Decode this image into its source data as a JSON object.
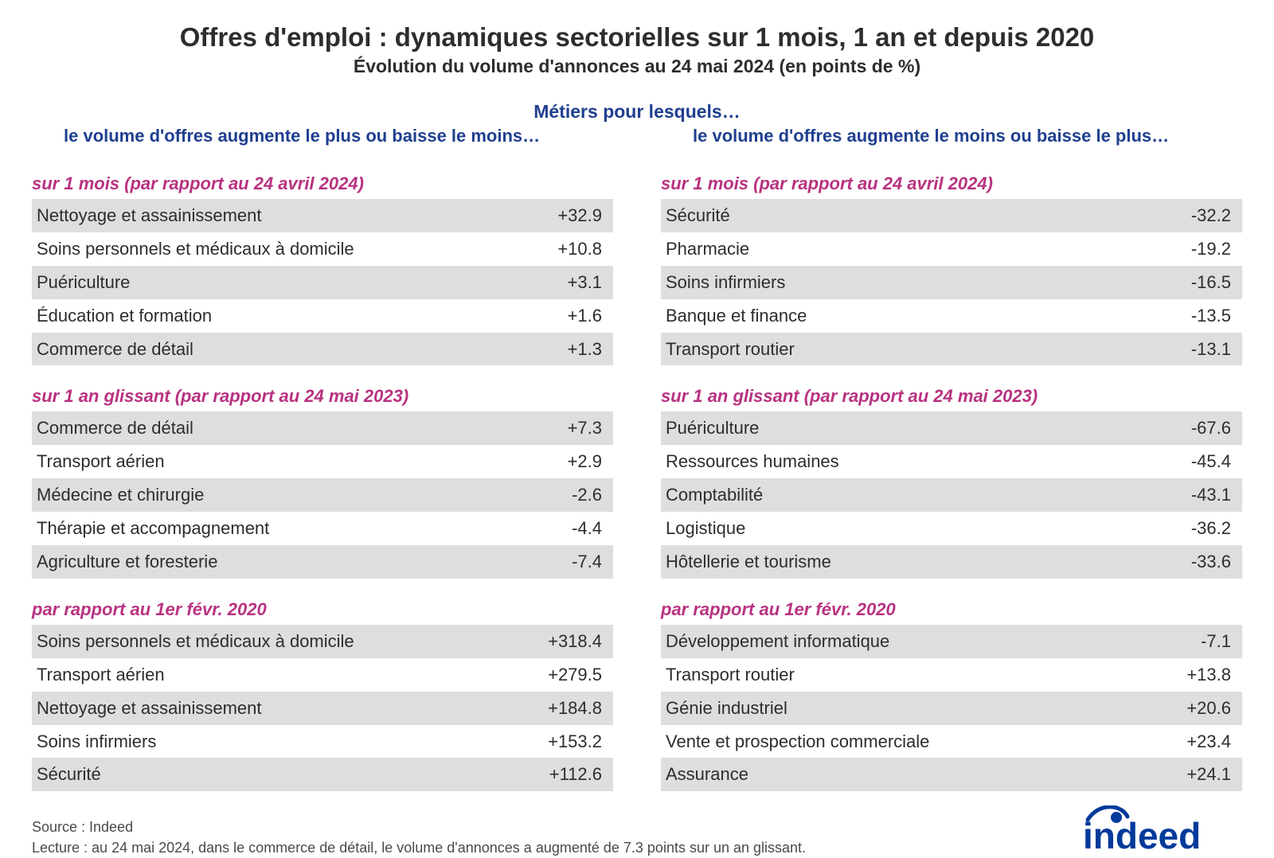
{
  "meta": {
    "title_fontsize": 33,
    "subtitle_fontsize": 23,
    "header_color": "#1f3f8f",
    "section_title_color": "#b83280",
    "row_text_color": "#2d2d2d",
    "row_shade_color": "#dedede",
    "background_color": "#ffffff",
    "row_fontsize": 22,
    "logo_color": "#003a9b"
  },
  "header": {
    "title": "Offres d'emploi : dynamiques sectorielles sur 1 mois, 1 an et depuis 2020",
    "subtitle": "Évolution du volume d'annonces au 24 mai 2024 (en points de %)",
    "supheader": "Métiers pour lesquels…"
  },
  "left": {
    "colheader": "le volume d'offres augmente le plus ou baisse le moins…",
    "sections": [
      {
        "title": "sur 1 mois (par rapport au 24 avril 2024)",
        "rows": [
          {
            "label": "Nettoyage et assainissement",
            "value": "+32.9"
          },
          {
            "label": "Soins personnels et médicaux à domicile",
            "value": "+10.8"
          },
          {
            "label": "Puériculture",
            "value": "+3.1"
          },
          {
            "label": "Éducation et formation",
            "value": "+1.6"
          },
          {
            "label": "Commerce de détail",
            "value": "+1.3"
          }
        ]
      },
      {
        "title": "sur 1 an glissant (par rapport au 24 mai 2023)",
        "rows": [
          {
            "label": "Commerce de détail",
            "value": "+7.3"
          },
          {
            "label": "Transport aérien",
            "value": "+2.9"
          },
          {
            "label": "Médecine et chirurgie",
            "value": "-2.6"
          },
          {
            "label": "Thérapie et accompagnement",
            "value": "-4.4"
          },
          {
            "label": "Agriculture et foresterie",
            "value": "-7.4"
          }
        ]
      },
      {
        "title": "par rapport au 1er févr. 2020",
        "rows": [
          {
            "label": "Soins personnels et médicaux à domicile",
            "value": "+318.4"
          },
          {
            "label": "Transport aérien",
            "value": "+279.5"
          },
          {
            "label": "Nettoyage et assainissement",
            "value": "+184.8"
          },
          {
            "label": "Soins infirmiers",
            "value": "+153.2"
          },
          {
            "label": "Sécurité",
            "value": "+112.6"
          }
        ]
      }
    ]
  },
  "right": {
    "colheader": "le volume d'offres augmente le moins ou baisse le plus…",
    "sections": [
      {
        "title": "sur 1 mois (par rapport au 24 avril 2024)",
        "rows": [
          {
            "label": "Sécurité",
            "value": "-32.2"
          },
          {
            "label": "Pharmacie",
            "value": "-19.2"
          },
          {
            "label": "Soins infirmiers",
            "value": "-16.5"
          },
          {
            "label": "Banque et finance",
            "value": "-13.5"
          },
          {
            "label": "Transport routier",
            "value": "-13.1"
          }
        ]
      },
      {
        "title": "sur 1 an glissant (par rapport au 24 mai 2023)",
        "rows": [
          {
            "label": "Puériculture",
            "value": "-67.6"
          },
          {
            "label": "Ressources humaines",
            "value": "-45.4"
          },
          {
            "label": "Comptabilité",
            "value": "-43.1"
          },
          {
            "label": "Logistique",
            "value": "-36.2"
          },
          {
            "label": "Hôtellerie et tourisme",
            "value": "-33.6"
          }
        ]
      },
      {
        "title": "par rapport au 1er févr. 2020",
        "rows": [
          {
            "label": "Développement informatique",
            "value": "-7.1"
          },
          {
            "label": "Transport routier",
            "value": "+13.8"
          },
          {
            "label": "Génie industriel",
            "value": "+20.6"
          },
          {
            "label": "Vente et prospection commerciale",
            "value": "+23.4"
          },
          {
            "label": "Assurance",
            "value": "+24.1"
          }
        ]
      }
    ]
  },
  "footer": {
    "source": "Source : Indeed",
    "lecture": "Lecture : au 24 mai 2024, dans le commerce de détail, le volume d'annonces a augmenté de 7.3 points sur un an glissant.",
    "logo_text": "indeed"
  }
}
